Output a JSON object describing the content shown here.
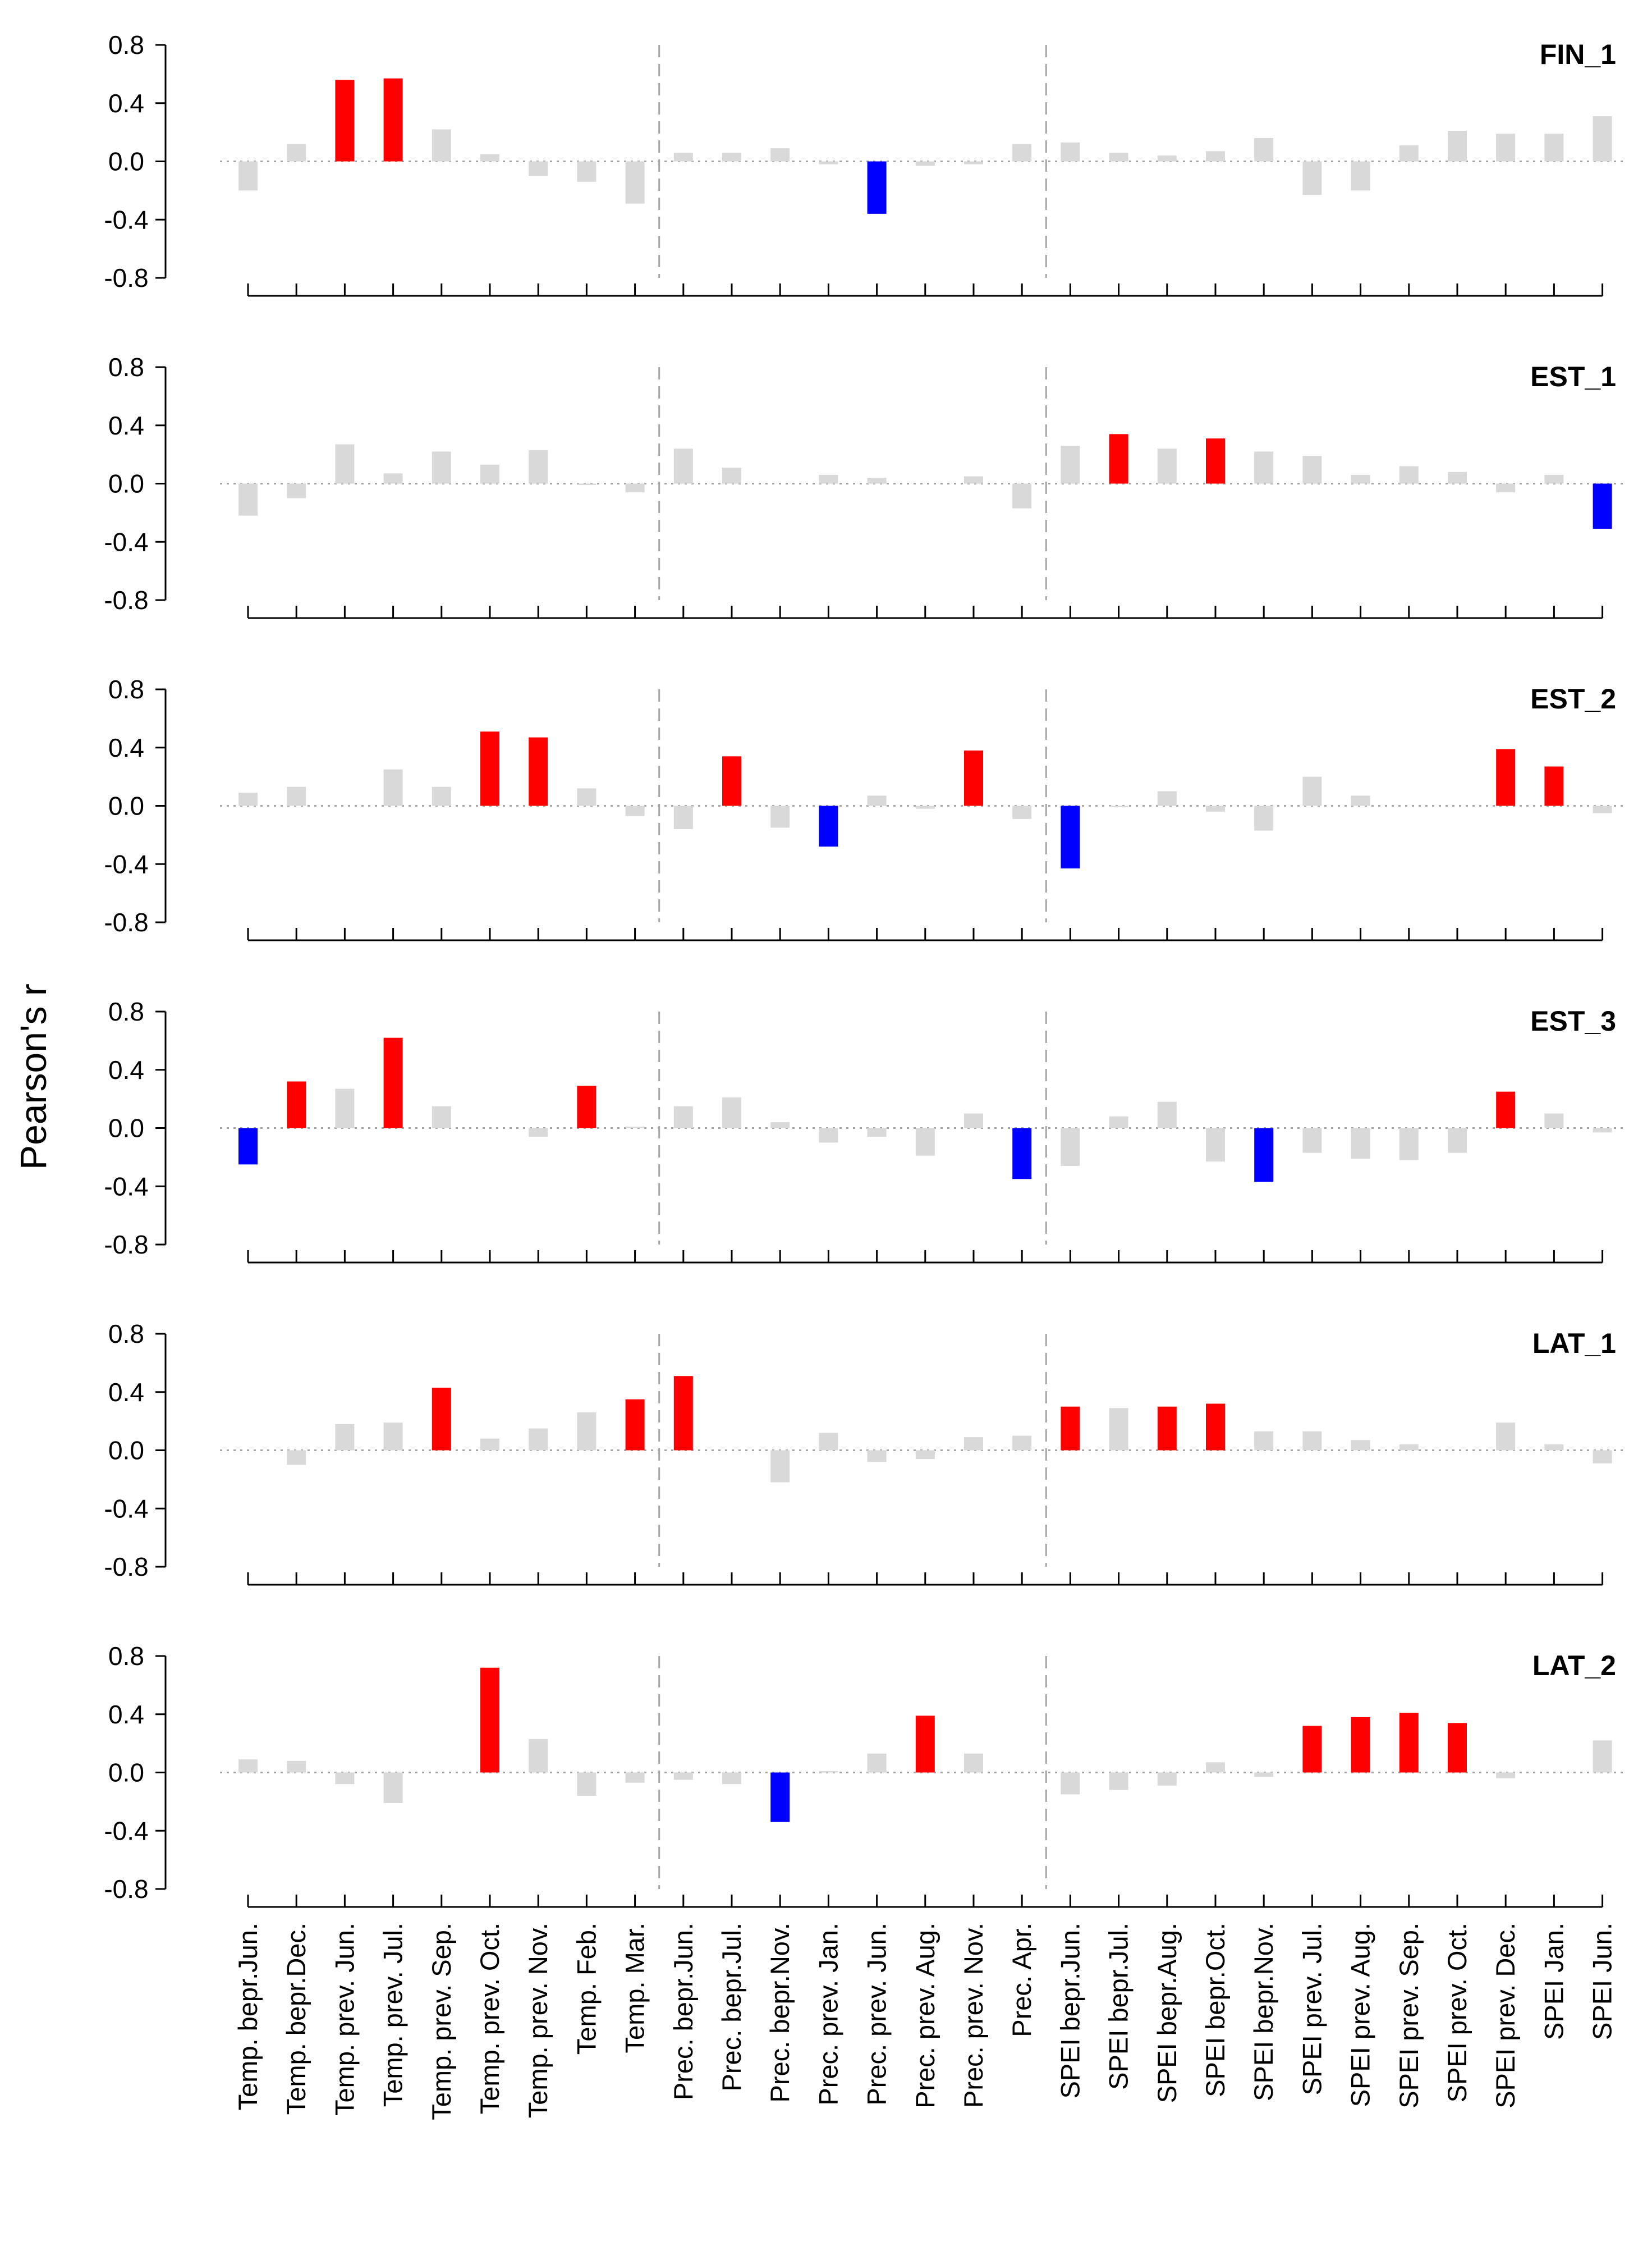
{
  "chart_data": {
    "type": "bar",
    "ylabel": "Pearson's r",
    "ylim": [
      -0.8,
      0.8
    ],
    "yticks": [
      0.8,
      0.4,
      0.0,
      -0.4,
      -0.8
    ],
    "ytick_labels": [
      "0.8",
      "0.4",
      "0.0",
      "-0.4",
      "-0.8"
    ],
    "zero_line": "dotted",
    "group_separators_after_index": [
      8,
      16
    ],
    "categories": [
      "Temp. bepr.Jun.",
      "Temp. bepr.Dec.",
      "Temp. prev. Jun.",
      "Temp. prev. Jul.",
      "Temp. prev. Sep.",
      "Temp. prev. Oct.",
      "Temp. prev. Nov.",
      "Temp. Feb.",
      "Temp. Mar.",
      "Prec. bepr.Jun.",
      "Prec. bepr.Jul.",
      "Prec. bepr.Nov.",
      "Prec. prev. Jan.",
      "Prec. prev. Jun.",
      "Prec. prev. Aug.",
      "Prec. prev. Nov.",
      "Prec. Apr.",
      "SPEI bepr.Jun.",
      "SPEI bepr.Jul.",
      "SPEI bepr.Aug.",
      "SPEI bepr.Oct.",
      "SPEI bepr.Nov.",
      "SPEI prev. Jul.",
      "SPEI prev. Aug.",
      "SPEI prev. Sep.",
      "SPEI prev. Oct.",
      "SPEI prev. Dec.",
      "SPEI Jan.",
      "SPEI Jun."
    ],
    "colors": {
      "positive_significant": "#ff0000",
      "negative_significant": "#0000ff",
      "not_significant": "#d9d9d9"
    },
    "panels": [
      {
        "name": "FIN_1",
        "values": [
          -0.2,
          0.12,
          0.56,
          0.57,
          0.22,
          0.05,
          -0.1,
          -0.14,
          -0.29,
          0.06,
          0.06,
          0.09,
          -0.02,
          -0.36,
          -0.03,
          -0.02,
          0.12,
          0.13,
          0.06,
          0.04,
          0.07,
          0.16,
          -0.23,
          -0.2,
          0.11,
          0.21,
          0.19,
          0.19,
          0.31
        ],
        "significance": [
          "n",
          "n",
          "pos",
          "pos",
          "n",
          "n",
          "n",
          "n",
          "n",
          "n",
          "n",
          "n",
          "n",
          "neg",
          "n",
          "n",
          "n",
          "n",
          "n",
          "n",
          "n",
          "n",
          "n",
          "n",
          "n",
          "n",
          "n",
          "n",
          "n"
        ]
      },
      {
        "name": "EST_1",
        "values": [
          -0.22,
          -0.1,
          0.27,
          0.07,
          0.22,
          0.13,
          0.23,
          -0.01,
          -0.06,
          0.24,
          0.11,
          0.0,
          0.06,
          0.04,
          0.0,
          0.05,
          -0.17,
          0.26,
          0.34,
          0.24,
          0.31,
          0.22,
          0.19,
          0.06,
          0.12,
          0.08,
          -0.06,
          0.06,
          -0.31
        ],
        "significance": [
          "n",
          "n",
          "n",
          "n",
          "n",
          "n",
          "n",
          "n",
          "n",
          "n",
          "n",
          "n",
          "n",
          "n",
          "n",
          "n",
          "n",
          "n",
          "pos",
          "n",
          "pos",
          "n",
          "n",
          "n",
          "n",
          "n",
          "n",
          "n",
          "neg"
        ]
      },
      {
        "name": "EST_2",
        "values": [
          0.09,
          0.13,
          0.0,
          0.25,
          0.13,
          0.51,
          0.47,
          0.12,
          -0.07,
          -0.16,
          0.34,
          -0.15,
          -0.28,
          0.07,
          -0.02,
          0.38,
          -0.09,
          -0.43,
          -0.01,
          0.1,
          -0.04,
          -0.17,
          0.2,
          0.07,
          0.0,
          0.0,
          0.39,
          0.27,
          -0.05
        ],
        "significance": [
          "n",
          "n",
          "n",
          "n",
          "n",
          "pos",
          "pos",
          "n",
          "n",
          "n",
          "pos",
          "n",
          "neg",
          "n",
          "n",
          "pos",
          "n",
          "neg",
          "n",
          "n",
          "n",
          "n",
          "n",
          "n",
          "n",
          "n",
          "pos",
          "pos",
          "n"
        ]
      },
      {
        "name": "EST_3",
        "values": [
          -0.25,
          0.32,
          0.27,
          0.62,
          0.15,
          0.0,
          -0.06,
          0.29,
          0.01,
          0.15,
          0.21,
          0.04,
          -0.1,
          -0.06,
          -0.19,
          0.1,
          -0.35,
          -0.26,
          0.08,
          0.18,
          -0.23,
          -0.37,
          -0.17,
          -0.21,
          -0.22,
          -0.17,
          0.25,
          0.1,
          -0.03
        ],
        "significance": [
          "neg",
          "pos",
          "n",
          "pos",
          "n",
          "n",
          "n",
          "pos",
          "n",
          "n",
          "n",
          "n",
          "n",
          "n",
          "n",
          "n",
          "neg",
          "n",
          "n",
          "n",
          "n",
          "neg",
          "n",
          "n",
          "n",
          "n",
          "pos",
          "n",
          "n"
        ]
      },
      {
        "name": "LAT_1",
        "values": [
          0.0,
          -0.1,
          0.18,
          0.19,
          0.43,
          0.08,
          0.15,
          0.26,
          0.35,
          0.51,
          0.0,
          -0.22,
          0.12,
          -0.08,
          -0.06,
          0.09,
          0.1,
          0.3,
          0.29,
          0.3,
          0.32,
          0.13,
          0.13,
          0.07,
          0.04,
          0.0,
          0.19,
          0.04,
          -0.09
        ],
        "significance": [
          "n",
          "n",
          "n",
          "n",
          "pos",
          "n",
          "n",
          "n",
          "pos",
          "pos",
          "n",
          "n",
          "n",
          "n",
          "n",
          "n",
          "n",
          "pos",
          "n",
          "pos",
          "pos",
          "n",
          "n",
          "n",
          "n",
          "n",
          "n",
          "n",
          "n"
        ]
      },
      {
        "name": "LAT_2",
        "values": [
          0.09,
          0.08,
          -0.08,
          -0.21,
          0.0,
          0.72,
          0.23,
          -0.16,
          -0.07,
          -0.05,
          -0.08,
          -0.34,
          0.01,
          0.13,
          0.39,
          0.13,
          0.0,
          -0.15,
          -0.12,
          -0.09,
          0.07,
          -0.03,
          0.32,
          0.38,
          0.41,
          0.34,
          -0.04,
          0.0,
          0.22
        ],
        "significance": [
          "n",
          "n",
          "n",
          "n",
          "n",
          "pos",
          "n",
          "n",
          "n",
          "n",
          "n",
          "neg",
          "n",
          "n",
          "pos",
          "n",
          "n",
          "n",
          "n",
          "n",
          "n",
          "n",
          "pos",
          "pos",
          "pos",
          "pos",
          "n",
          "n",
          "n"
        ]
      }
    ]
  }
}
